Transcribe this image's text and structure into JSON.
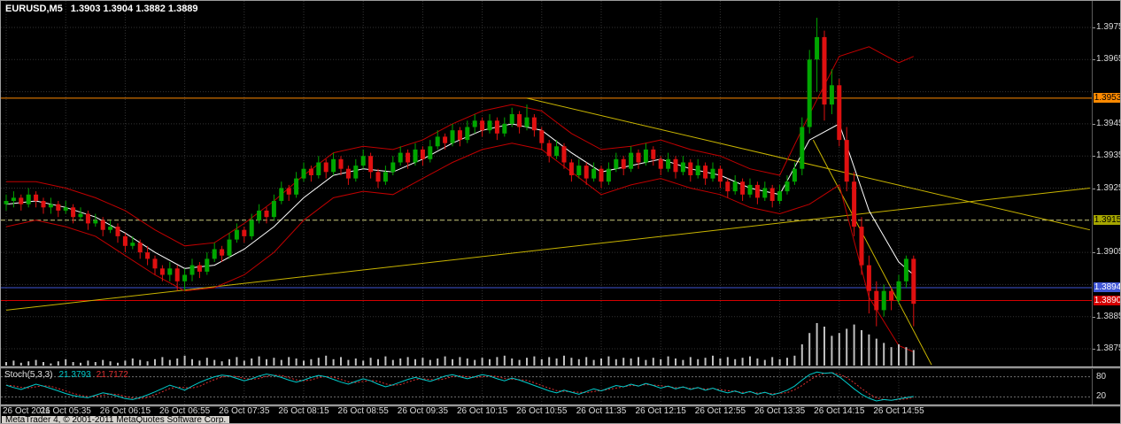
{
  "window": {
    "title_symbol": "EURUSD,M5",
    "title_ohlc": "1.3903 1.3904 1.3882 1.3889",
    "copyright": "MetaTrader 4, © 2001-2011 MetaQuotes Software Corp."
  },
  "colors": {
    "background": "#000000",
    "grid": "#333333",
    "bull": "#00A600",
    "bear": "#DF1010",
    "ma": "#FFFFFF",
    "band": "#C00000",
    "trendline": "#C8B400",
    "volume": "#C0C0C0",
    "axis_text": "#DCDCDC",
    "stoch_main_color": "#00CCCC",
    "stoch_signal_color": "#E03030",
    "stoch_level_color": "#707070"
  },
  "price_axis": {
    "labels": [
      "1.3975",
      "1.3965",
      "1.3945",
      "1.3935",
      "1.3925",
      "1.3905",
      "1.3885",
      "1.3875"
    ],
    "badges": [
      {
        "value": "1.3953",
        "bg": "#FF8A00",
        "fg": "#000000"
      },
      {
        "value": "1.3915",
        "bg": "#A6A600",
        "fg": "#000000"
      },
      {
        "value": "1.3894",
        "bg": "#4056D6",
        "fg": "#FFFFFF"
      },
      {
        "value": "1.3890",
        "bg": "#D40000",
        "fg": "#FFFFFF"
      }
    ]
  },
  "time_axis": {
    "labels": [
      "26 Oct 2011",
      "26 Oct 05:35",
      "26 Oct 06:15",
      "26 Oct 06:55",
      "26 Oct 07:35",
      "26 Oct 08:15",
      "26 Oct 08:55",
      "26 Oct 09:35",
      "26 Oct 10:15",
      "26 Oct 10:55",
      "26 Oct 11:35",
      "26 Oct 12:15",
      "26 Oct 12:55",
      "26 Oct 13:35",
      "26 Oct 14:15",
      "26 Oct 14:55"
    ]
  },
  "stoch": {
    "label": "Stoch(5,3,3)",
    "value_main": "21.3793",
    "value_signal": "21.7172",
    "levels": [
      80,
      20
    ],
    "axis_labels": [
      "80",
      "20"
    ]
  },
  "chart_data": {
    "type": "candlestick",
    "symbol": "EURUSD",
    "timeframe": "M5",
    "date": "26 Oct 2011",
    "start_time": "04:55",
    "interval_minutes": 5,
    "price_range": [
      1.3875,
      1.3978
    ],
    "last_bar_ohlc": {
      "open": 1.3903,
      "high": 1.3904,
      "low": 1.3882,
      "close": 1.3889
    },
    "candles": [
      [
        1.392,
        1.3923,
        1.3918,
        1.3921
      ],
      [
        1.3921,
        1.3924,
        1.3919,
        1.3922
      ],
      [
        1.3922,
        1.3923,
        1.3918,
        1.392
      ],
      [
        1.392,
        1.3925,
        1.3919,
        1.3923
      ],
      [
        1.3923,
        1.3924,
        1.3919,
        1.3921
      ],
      [
        1.3921,
        1.3922,
        1.3917,
        1.3919
      ],
      [
        1.3919,
        1.3922,
        1.3917,
        1.392
      ],
      [
        1.392,
        1.3921,
        1.3916,
        1.3918
      ],
      [
        1.3918,
        1.3921,
        1.3917,
        1.3919
      ],
      [
        1.3919,
        1.392,
        1.3914,
        1.3916
      ],
      [
        1.3916,
        1.3919,
        1.3915,
        1.3917
      ],
      [
        1.3917,
        1.3918,
        1.3912,
        1.3914
      ],
      [
        1.3914,
        1.3917,
        1.3913,
        1.3915
      ],
      [
        1.3915,
        1.3916,
        1.391,
        1.3912
      ],
      [
        1.3912,
        1.3915,
        1.3911,
        1.3913
      ],
      [
        1.3913,
        1.3914,
        1.3908,
        1.391
      ],
      [
        1.391,
        1.3911,
        1.3905,
        1.3907
      ],
      [
        1.3907,
        1.391,
        1.3906,
        1.3908
      ],
      [
        1.3908,
        1.3909,
        1.3903,
        1.3905
      ],
      [
        1.3905,
        1.3907,
        1.3901,
        1.3903
      ],
      [
        1.3903,
        1.3904,
        1.3898,
        1.39
      ],
      [
        1.39,
        1.3901,
        1.3896,
        1.3898
      ],
      [
        1.3898,
        1.3902,
        1.3896,
        1.39
      ],
      [
        1.39,
        1.3901,
        1.3893,
        1.3896
      ],
      [
        1.3896,
        1.39,
        1.3893,
        1.3898
      ],
      [
        1.3898,
        1.3903,
        1.3896,
        1.3901
      ],
      [
        1.3901,
        1.3902,
        1.3897,
        1.3899
      ],
      [
        1.3899,
        1.3905,
        1.3898,
        1.3903
      ],
      [
        1.3903,
        1.3908,
        1.3902,
        1.3906
      ],
      [
        1.3906,
        1.3907,
        1.3902,
        1.3904
      ],
      [
        1.3904,
        1.3911,
        1.3903,
        1.3909
      ],
      [
        1.3909,
        1.3914,
        1.3908,
        1.3912
      ],
      [
        1.3912,
        1.3913,
        1.3908,
        1.391
      ],
      [
        1.391,
        1.3917,
        1.3909,
        1.3915
      ],
      [
        1.3915,
        1.392,
        1.3914,
        1.3918
      ],
      [
        1.3918,
        1.3919,
        1.3914,
        1.3916
      ],
      [
        1.3916,
        1.3923,
        1.3915,
        1.3921
      ],
      [
        1.3921,
        1.3927,
        1.392,
        1.3925
      ],
      [
        1.3925,
        1.3926,
        1.3921,
        1.3923
      ],
      [
        1.3923,
        1.393,
        1.3922,
        1.3928
      ],
      [
        1.3928,
        1.3933,
        1.3927,
        1.3931
      ],
      [
        1.3931,
        1.3932,
        1.3927,
        1.3929
      ],
      [
        1.3929,
        1.3935,
        1.3928,
        1.3933
      ],
      [
        1.3933,
        1.3934,
        1.3928,
        1.393
      ],
      [
        1.393,
        1.3936,
        1.3929,
        1.3934
      ],
      [
        1.3934,
        1.3935,
        1.3929,
        1.3931
      ],
      [
        1.3931,
        1.3932,
        1.3926,
        1.3928
      ],
      [
        1.3928,
        1.3934,
        1.3927,
        1.3932
      ],
      [
        1.3932,
        1.3937,
        1.3931,
        1.3935
      ],
      [
        1.3935,
        1.3936,
        1.3928,
        1.393
      ],
      [
        1.393,
        1.3931,
        1.3925,
        1.3927
      ],
      [
        1.3927,
        1.3932,
        1.3926,
        1.393
      ],
      [
        1.393,
        1.3935,
        1.3929,
        1.3933
      ],
      [
        1.3933,
        1.3938,
        1.3932,
        1.3936
      ],
      [
        1.3936,
        1.3937,
        1.3931,
        1.3933
      ],
      [
        1.3933,
        1.3939,
        1.3932,
        1.3937
      ],
      [
        1.3937,
        1.3938,
        1.3932,
        1.3934
      ],
      [
        1.3934,
        1.394,
        1.3933,
        1.3938
      ],
      [
        1.3938,
        1.3943,
        1.3937,
        1.3941
      ],
      [
        1.3941,
        1.3942,
        1.3937,
        1.3939
      ],
      [
        1.3939,
        1.3945,
        1.3938,
        1.3943
      ],
      [
        1.3943,
        1.3944,
        1.3938,
        1.394
      ],
      [
        1.394,
        1.3946,
        1.3939,
        1.3944
      ],
      [
        1.3944,
        1.3948,
        1.3942,
        1.3946
      ],
      [
        1.3946,
        1.3947,
        1.3941,
        1.3943
      ],
      [
        1.3943,
        1.3948,
        1.3942,
        1.3946
      ],
      [
        1.3946,
        1.3947,
        1.394,
        1.3942
      ],
      [
        1.3942,
        1.3947,
        1.3941,
        1.3945
      ],
      [
        1.3945,
        1.395,
        1.3944,
        1.3948
      ],
      [
        1.3948,
        1.3949,
        1.3942,
        1.3944
      ],
      [
        1.3944,
        1.3951,
        1.3943,
        1.3947
      ],
      [
        1.3947,
        1.3948,
        1.3941,
        1.3943
      ],
      [
        1.3943,
        1.3944,
        1.3937,
        1.3939
      ],
      [
        1.3939,
        1.394,
        1.3933,
        1.3935
      ],
      [
        1.3935,
        1.394,
        1.3934,
        1.3938
      ],
      [
        1.3938,
        1.3939,
        1.3931,
        1.3933
      ],
      [
        1.3933,
        1.3934,
        1.3927,
        1.3929
      ],
      [
        1.3929,
        1.3934,
        1.3928,
        1.3932
      ],
      [
        1.3932,
        1.3933,
        1.3926,
        1.3928
      ],
      [
        1.3928,
        1.3933,
        1.3927,
        1.3931
      ],
      [
        1.3931,
        1.3932,
        1.3925,
        1.3927
      ],
      [
        1.3927,
        1.3933,
        1.3926,
        1.3931
      ],
      [
        1.3931,
        1.3936,
        1.393,
        1.3934
      ],
      [
        1.3934,
        1.3935,
        1.3929,
        1.3931
      ],
      [
        1.3931,
        1.3938,
        1.393,
        1.3936
      ],
      [
        1.3936,
        1.3937,
        1.3931,
        1.3933
      ],
      [
        1.3933,
        1.3939,
        1.3932,
        1.3937
      ],
      [
        1.3937,
        1.3938,
        1.3932,
        1.3934
      ],
      [
        1.3934,
        1.3935,
        1.3929,
        1.3931
      ],
      [
        1.3931,
        1.3936,
        1.393,
        1.3934
      ],
      [
        1.3934,
        1.3935,
        1.3928,
        1.393
      ],
      [
        1.393,
        1.3935,
        1.3929,
        1.3933
      ],
      [
        1.3933,
        1.3934,
        1.3927,
        1.3929
      ],
      [
        1.3929,
        1.3934,
        1.3928,
        1.3932
      ],
      [
        1.3932,
        1.3933,
        1.3926,
        1.3928
      ],
      [
        1.3928,
        1.3933,
        1.3927,
        1.3931
      ],
      [
        1.3931,
        1.3932,
        1.3925,
        1.3927
      ],
      [
        1.3927,
        1.3928,
        1.3922,
        1.3924
      ],
      [
        1.3924,
        1.3929,
        1.3923,
        1.3927
      ],
      [
        1.3927,
        1.3928,
        1.3921,
        1.3923
      ],
      [
        1.3923,
        1.3928,
        1.3922,
        1.3926
      ],
      [
        1.3926,
        1.3927,
        1.392,
        1.3922
      ],
      [
        1.3922,
        1.3927,
        1.3921,
        1.3925
      ],
      [
        1.3925,
        1.3926,
        1.3919,
        1.3921
      ],
      [
        1.3921,
        1.3926,
        1.392,
        1.3924
      ],
      [
        1.3924,
        1.3929,
        1.3923,
        1.3927
      ],
      [
        1.3927,
        1.3933,
        1.3926,
        1.3931
      ],
      [
        1.3931,
        1.3947,
        1.3929,
        1.3944
      ],
      [
        1.3944,
        1.3968,
        1.3942,
        1.3965
      ],
      [
        1.3965,
        1.3978,
        1.3955,
        1.3972
      ],
      [
        1.3972,
        1.3974,
        1.3946,
        1.3951
      ],
      [
        1.3951,
        1.3962,
        1.3948,
        1.3957
      ],
      [
        1.3957,
        1.3959,
        1.3938,
        1.394
      ],
      [
        1.394,
        1.3944,
        1.3924,
        1.3927
      ],
      [
        1.3927,
        1.393,
        1.391,
        1.3913
      ],
      [
        1.3913,
        1.3916,
        1.3898,
        1.3901
      ],
      [
        1.3901,
        1.3904,
        1.3886,
        1.3893
      ],
      [
        1.3893,
        1.3896,
        1.3882,
        1.3887
      ],
      [
        1.3887,
        1.3895,
        1.3885,
        1.3893
      ],
      [
        1.3893,
        1.3894,
        1.3887,
        1.389
      ],
      [
        1.389,
        1.3898,
        1.3889,
        1.3896
      ],
      [
        1.3896,
        1.3904,
        1.3894,
        1.3903
      ],
      [
        1.3903,
        1.3904,
        1.3882,
        1.3889
      ]
    ],
    "volumes": [
      5,
      7,
      4,
      6,
      8,
      5,
      3,
      6,
      9,
      5,
      4,
      7,
      5,
      8,
      6,
      4,
      7,
      10,
      8,
      6,
      9,
      12,
      8,
      10,
      14,
      9,
      7,
      11,
      8,
      6,
      9,
      12,
      7,
      10,
      13,
      9,
      11,
      8,
      12,
      10,
      7,
      9,
      11,
      14,
      9,
      12,
      8,
      10,
      7,
      11,
      9,
      13,
      8,
      10,
      12,
      9,
      11,
      8,
      10,
      13,
      9,
      12,
      10,
      8,
      11,
      9,
      12,
      14,
      10,
      8,
      11,
      13,
      9,
      12,
      10,
      14,
      11,
      9,
      12,
      8,
      10,
      13,
      9,
      11,
      10,
      12,
      8,
      11,
      9,
      13,
      10,
      8,
      12,
      9,
      11,
      14,
      10,
      12,
      9,
      11,
      13,
      10,
      8,
      12,
      9,
      11,
      14,
      30,
      46,
      60,
      55,
      42,
      46,
      52,
      58,
      50,
      44,
      38,
      32,
      26,
      30,
      26,
      22
    ],
    "overlays": {
      "ma_white": {
        "sample_step": 4,
        "values": [
          1.392,
          1.3921,
          1.3919,
          1.3916,
          1.3911,
          1.3905,
          1.39,
          1.3901,
          1.3906,
          1.3913,
          1.3922,
          1.3929,
          1.3931,
          1.393,
          1.3934,
          1.3939,
          1.3943,
          1.3945,
          1.3943,
          1.3936,
          1.393,
          1.3932,
          1.3934,
          1.3931,
          1.3929,
          1.3925,
          1.3923,
          1.394,
          1.3945,
          1.3918,
          1.3902,
          1.3898
        ]
      },
      "band_upper": {
        "sample_step": 4,
        "values": [
          1.3927,
          1.3927,
          1.3925,
          1.3922,
          1.3918,
          1.3912,
          1.3907,
          1.3908,
          1.3914,
          1.3921,
          1.3929,
          1.3936,
          1.3938,
          1.3937,
          1.394,
          1.3945,
          1.3949,
          1.3951,
          1.3949,
          1.3942,
          1.3937,
          1.3938,
          1.394,
          1.3937,
          1.3935,
          1.3931,
          1.3929,
          1.3948,
          1.3966,
          1.3969,
          1.3964,
          1.3966
        ]
      },
      "band_lower": {
        "sample_step": 4,
        "values": [
          1.3913,
          1.3915,
          1.3913,
          1.391,
          1.3904,
          1.3898,
          1.3893,
          1.3894,
          1.3898,
          1.3905,
          1.3915,
          1.3922,
          1.3924,
          1.3923,
          1.3928,
          1.3933,
          1.3937,
          1.3939,
          1.3937,
          1.393,
          1.3923,
          1.3926,
          1.3928,
          1.3925,
          1.3923,
          1.3919,
          1.3917,
          1.392,
          1.3926,
          1.3891,
          1.3876,
          1.3874
        ]
      }
    },
    "levels": [
      {
        "price": 1.3953,
        "color": "#FF8A00",
        "style": "solid"
      },
      {
        "price": 1.3915,
        "color": "#C8C878",
        "style": "dash"
      },
      {
        "price": 1.3894,
        "color": "#4056D6",
        "style": "solid"
      },
      {
        "price": 1.389,
        "color": "#D40000",
        "style": "solid"
      }
    ],
    "trendlines": [
      {
        "from_bar": 0,
        "from_price": 1.3887,
        "to_bar": 145.7,
        "to_price": 1.3925
      },
      {
        "from_bar": 70,
        "from_price": 1.3953,
        "to_bar": 145.7,
        "to_price": 1.3912
      },
      {
        "from_bar": 108.5,
        "from_price": 1.394,
        "to_bar": 124.4,
        "to_price": 1.387
      }
    ],
    "stoch_main": [
      55,
      48,
      42,
      50,
      58,
      52,
      45,
      38,
      30,
      24,
      20,
      18,
      25,
      32,
      28,
      22,
      15,
      12,
      18,
      26,
      35,
      45,
      55,
      48,
      40,
      52,
      63,
      72,
      80,
      85,
      82,
      75,
      68,
      74,
      82,
      88,
      84,
      78,
      70,
      64,
      70,
      78,
      84,
      80,
      72,
      64,
      58,
      66,
      74,
      68,
      58,
      50,
      56,
      64,
      72,
      78,
      72,
      66,
      74,
      82,
      86,
      80,
      74,
      80,
      86,
      82,
      74,
      68,
      76,
      70,
      62,
      54,
      46,
      38,
      32,
      40,
      34,
      28,
      36,
      44,
      38,
      46,
      54,
      50,
      58,
      52,
      60,
      54,
      46,
      52,
      44,
      50,
      42,
      48,
      40,
      46,
      38,
      32,
      38,
      30,
      36,
      28,
      34,
      26,
      32,
      40,
      52,
      70,
      86,
      94,
      90,
      92,
      80,
      62,
      44,
      28,
      16,
      8,
      12,
      10,
      14,
      18,
      21.4
    ]
  }
}
